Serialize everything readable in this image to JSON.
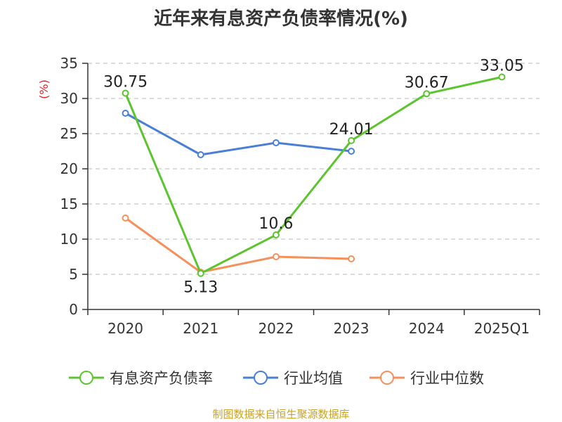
{
  "title": "近年来有息资产负债率情况(%)",
  "source": "制图数据来自恒生聚源数据库",
  "chart_data": {
    "type": "line",
    "title": "近年来有息资产负债率情况(%)",
    "xlabel": "",
    "ylabel": "(%)",
    "ylim": [
      0,
      35
    ],
    "yticks": [
      0,
      5,
      10,
      15,
      20,
      25,
      30,
      35
    ],
    "grid": true,
    "legend_position": "bottom",
    "categories": [
      "2020",
      "2021",
      "2022",
      "2023",
      "2024",
      "2025Q1"
    ],
    "series": [
      {
        "name": "有息资产负债率",
        "color": "#5cc42e",
        "values": [
          30.75,
          5.13,
          10.6,
          24.01,
          30.67,
          33.05
        ],
        "labels": [
          "30.75",
          "5.13",
          "10.6",
          "24.01",
          "30.67",
          "33.05"
        ]
      },
      {
        "name": "行业均值",
        "color": "#4a7fd6",
        "values": [
          27.9,
          22.0,
          23.7,
          22.5,
          null,
          null
        ]
      },
      {
        "name": "行业中位数",
        "color": "#f5905b",
        "values": [
          13.0,
          5.3,
          7.5,
          7.2,
          null,
          null
        ]
      }
    ]
  }
}
